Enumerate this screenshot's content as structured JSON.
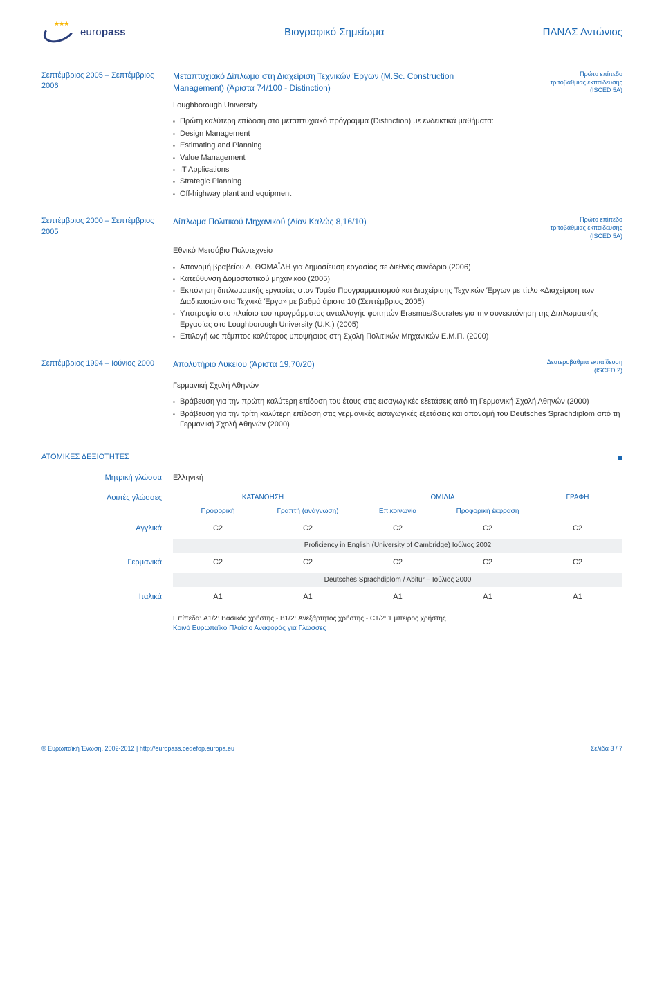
{
  "header": {
    "logo_text_prefix": "euro",
    "logo_text_bold": "pass",
    "doc_title": "Βιογραφικό Σημείωμα",
    "person_name": "ΠΑΝΑΣ Αντώνιος"
  },
  "education": [
    {
      "date": "Σεπτέμβριος 2005 – Σεπτέμβριος 2006",
      "title": "Μεταπτυχιακό Δίπλωμα στη Διαχείριση Τεχνικών Έργων (M.Sc. Construction Management) (Άριστα 74/100 - Distinction)",
      "level": "Πρώτο επίπεδο τριτοβάθμιας εκπαίδευσης (ISCED 5A)",
      "institution": "Loughborough University",
      "bullets": [
        "Πρώτη καλύτερη επίδοση στο μεταπτυχιακό πρόγραμμα (Distinction) με ενδεικτικά μαθήματα:",
        "Design Management",
        "Estimating and Planning",
        "Value Management",
        "IT Applications",
        "Strategic Planning",
        "Off-highway plant and equipment"
      ]
    },
    {
      "date": "Σεπτέμβριος 2000 – Σεπτέμβριος 2005",
      "title": "Δίπλωμα Πολιτικού Μηχανικού  (Λίαν Καλώς 8,16/10)",
      "level": "Πρώτο επίπεδο τριτοβάθμιας εκπαίδευσης (ISCED 5A)",
      "institution": "Εθνικό Μετσόβιο Πολυτεχνείο",
      "bullets": [
        "Απονομή βραβείου Δ. ΘΩΜΑΪΔΗ για δημοσίευση εργασίας σε διεθνές συνέδριο (2006)",
        "Κατεύθυνση Δομοστατικού μηχανικού (2005)",
        "Εκπόνηση διπλωματικής εργασίας στον Τομέα Προγραμματισμού και Διαχείρισης Τεχνικών Έργων με τίτλο «Διαχείριση των Διαδικασιών στα Τεχνικά Έργα» με βαθμό άριστα 10 (Σεπτέμβριος 2005)",
        "Υποτροφία στο πλαίσιο του προγράμματος ανταλλαγής φοιτητών Erasmus/Socrates για την συνεκπόνηση της Διπλωματικής Εργασίας στο Loughborough University (U.K.) (2005)",
        "Επιλογή ως πέμπτος καλύτερος υποψήφιος στη Σχολή Πολιτικών Μηχανικών Ε.Μ.Π. (2000)"
      ]
    },
    {
      "date": "Σεπτέμβριος 1994 – Ιούνιος 2000",
      "title": "Απολυτήριο Λυκείου (Άριστα 19,70/20)",
      "level": "Δευτεροβάθμια εκπαίδευση (ISCED 2)",
      "institution": "Γερμανική Σχολή Αθηνών",
      "bullets": [
        "Βράβευση για την πρώτη καλύτερη επίδοση του έτους στις εισαγωγικές εξετάσεις από τη Γερμανική Σχολή Αθηνών (2000)",
        "Βράβευση για την τρίτη καλύτερη επίδοση στις γερμανικές εισαγωγικές εξετάσεις και απονομή του Deutsches Sprachdiplom από τη Γερμανική Σχολή Αθηνών (2000)"
      ]
    }
  ],
  "skills": {
    "section_title": "ΑΤΟΜΙΚΕΣ ΔΕΞΙΟΤΗΤΕΣ",
    "mother_tongue_label": "Μητρική γλώσσα",
    "mother_tongue_value": "Ελληνική",
    "other_langs_label": "Λοιπές γλώσσες",
    "headers": {
      "understanding": "ΚΑΤΑΝΟΗΣΗ",
      "speaking": "ΟΜΙΛΙΑ",
      "writing": "ΓΡΑΦΗ",
      "oral": "Προφορική",
      "reading": "Γραπτή (ανάγνωση)",
      "interaction": "Επικοινωνία",
      "production": "Προφορική έκφραση"
    },
    "languages": [
      {
        "name": "Αγγλικά",
        "levels": [
          "C2",
          "C2",
          "C2",
          "C2",
          "C2"
        ],
        "cert": "Proficiency in English (University of Cambridge) Ιούλιος 2002"
      },
      {
        "name": "Γερμανικά",
        "levels": [
          "C2",
          "C2",
          "C2",
          "C2",
          "C2"
        ],
        "cert": "Deutsches Sprachdiplom  / Abitur – Ιούλιος 2000"
      },
      {
        "name": "Ιταλικά",
        "levels": [
          "A1",
          "A1",
          "A1",
          "A1",
          "A1"
        ],
        "cert": ""
      }
    ],
    "levels_note": "Επίπεδα: A1/2: Βασικός χρήστης - B1/2: Ανεξάρτητος χρήστης - C1/2: Έμπειρος χρήστης",
    "levels_link": "Κοινό Ευρωπαϊκό Πλαίσιο Αναφοράς για Γλώσσες"
  },
  "footer": {
    "left_text": "© Ευρωπαϊκή Ένωση, 2002-2012 | ",
    "left_url": "http://europass.cedefop.europa.eu",
    "right": "Σελίδα 3 / 7"
  },
  "colors": {
    "blue": "#1a67b3",
    "text": "#333333",
    "grey_bg": "#eef0f2",
    "logo_navy": "#2a3e7a",
    "logo_orange": "#f7b500"
  }
}
